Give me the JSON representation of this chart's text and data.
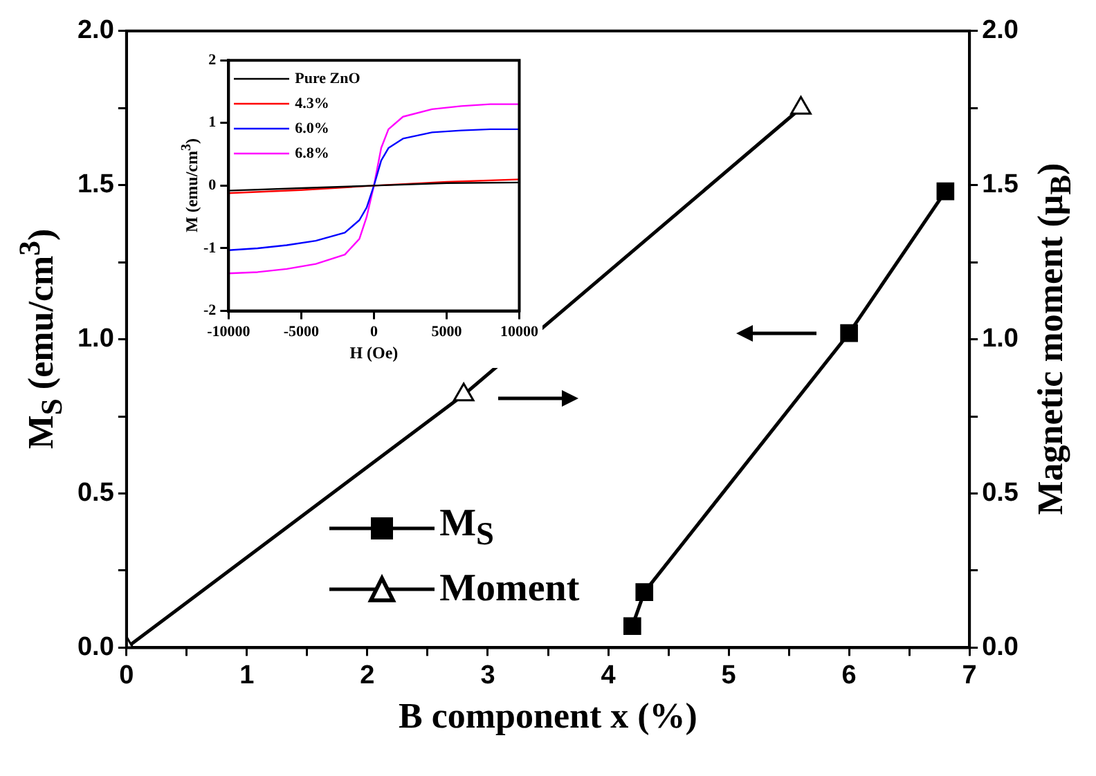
{
  "chart_data": [
    {
      "type": "line",
      "xlabel": "B component x (%)",
      "ylabel": "M$_{S}$ (emu/cm$^{3}$)",
      "y2label": "Magnetic moment (μ$_{B}$)",
      "xlim": [
        0,
        7
      ],
      "xticks": [
        0,
        {
          "value": 0.5,
          "label": null
        },
        1,
        {
          "value": 1.5,
          "label": null
        },
        2,
        {
          "value": 2.5,
          "label": null
        },
        3,
        {
          "value": 3.5,
          "label": null
        },
        4,
        {
          "value": 4.5,
          "label": null
        },
        5,
        {
          "value": 5.5,
          "label": null
        },
        6,
        {
          "value": 6.5,
          "label": null
        },
        7
      ],
      "ylim": [
        0,
        2
      ],
      "yticks": [
        {
          "value": 0,
          "label": "0.0"
        },
        {
          "value": 0.25,
          "label": null
        },
        {
          "value": 0.5,
          "label": "0.5"
        },
        {
          "value": 0.75,
          "label": null
        },
        {
          "value": 1,
          "label": "1.0"
        },
        {
          "value": 1.25,
          "label": null
        },
        {
          "value": 1.5,
          "label": "1.5"
        },
        {
          "value": 1.75,
          "label": null
        },
        {
          "value": 2,
          "label": "2.0"
        }
      ],
      "y2lim": [
        0,
        2
      ],
      "y2ticks": [
        {
          "value": 0,
          "label": "0.0"
        },
        {
          "value": 0.25,
          "label": null
        },
        {
          "value": 0.5,
          "label": "0.5"
        },
        {
          "value": 0.75,
          "label": null
        },
        {
          "value": 1,
          "label": "1.0"
        },
        {
          "value": 1.25,
          "label": null
        },
        {
          "value": 1.5,
          "label": "1.5"
        },
        {
          "value": 1.75,
          "label": null
        },
        {
          "value": 2,
          "label": "2.0"
        }
      ],
      "grid": false,
      "legend": "bottom",
      "line_style": "solid",
      "series": [
        {
          "name": "M$_{S}$",
          "color": "#000000",
          "marker": "square",
          "x": [
            4.2,
            4.3,
            6.0,
            6.8
          ],
          "values": [
            0.07,
            0.18,
            1.02,
            1.48
          ]
        },
        {
          "name": "Moment",
          "color": "#000000",
          "marker": "triangle",
          "axis": "y2",
          "x": [
            0,
            2.8,
            5.6
          ],
          "values": [
            0.0,
            0.82,
            1.75
          ]
        }
      ]
    },
    {
      "type": "line",
      "xlabel": "H (Oe)",
      "ylabel": "M (emu/cm$^{3}$)",
      "xlim": [
        -10000,
        10000
      ],
      "xticks": [
        -10000,
        -5000,
        0,
        5000,
        10000
      ],
      "ylim": [
        -2,
        2
      ],
      "yticks": [
        -2,
        -1,
        0,
        1,
        2
      ],
      "grid": false,
      "legend": "top left",
      "marker": "none",
      "line_style": "solid",
      "series": [
        {
          "name": "Pure ZnO",
          "color": "#000000",
          "x": [
            -10000,
            -5000,
            0,
            5000,
            10000
          ],
          "values": [
            -0.08,
            -0.04,
            0,
            0.04,
            0.05
          ]
        },
        {
          "name": "4.3%",
          "color": "#ff0000",
          "x": [
            -10000,
            -5000,
            0,
            5000,
            10000
          ],
          "values": [
            -0.12,
            -0.07,
            0,
            0.06,
            0.1
          ]
        },
        {
          "name": "6.0%",
          "color": "#0000ff",
          "x": [
            -10000,
            -8000,
            -6000,
            -4000,
            -2000,
            -1000,
            -500,
            0,
            500,
            1000,
            2000,
            4000,
            6000,
            8000,
            10000
          ],
          "values": [
            -1.03,
            -1.0,
            -0.95,
            -0.88,
            -0.75,
            -0.55,
            -0.35,
            0,
            0.4,
            0.6,
            0.75,
            0.85,
            0.88,
            0.9,
            0.9
          ]
        },
        {
          "name": "6.8%",
          "color": "#ff00ff",
          "x": [
            -10000,
            -8000,
            -6000,
            -4000,
            -2000,
            -1000,
            -500,
            0,
            500,
            1000,
            2000,
            4000,
            6000,
            8000,
            10000
          ],
          "values": [
            -1.4,
            -1.38,
            -1.33,
            -1.25,
            -1.1,
            -0.85,
            -0.5,
            0,
            0.6,
            0.9,
            1.1,
            1.22,
            1.27,
            1.3,
            1.3
          ]
        }
      ]
    }
  ]
}
